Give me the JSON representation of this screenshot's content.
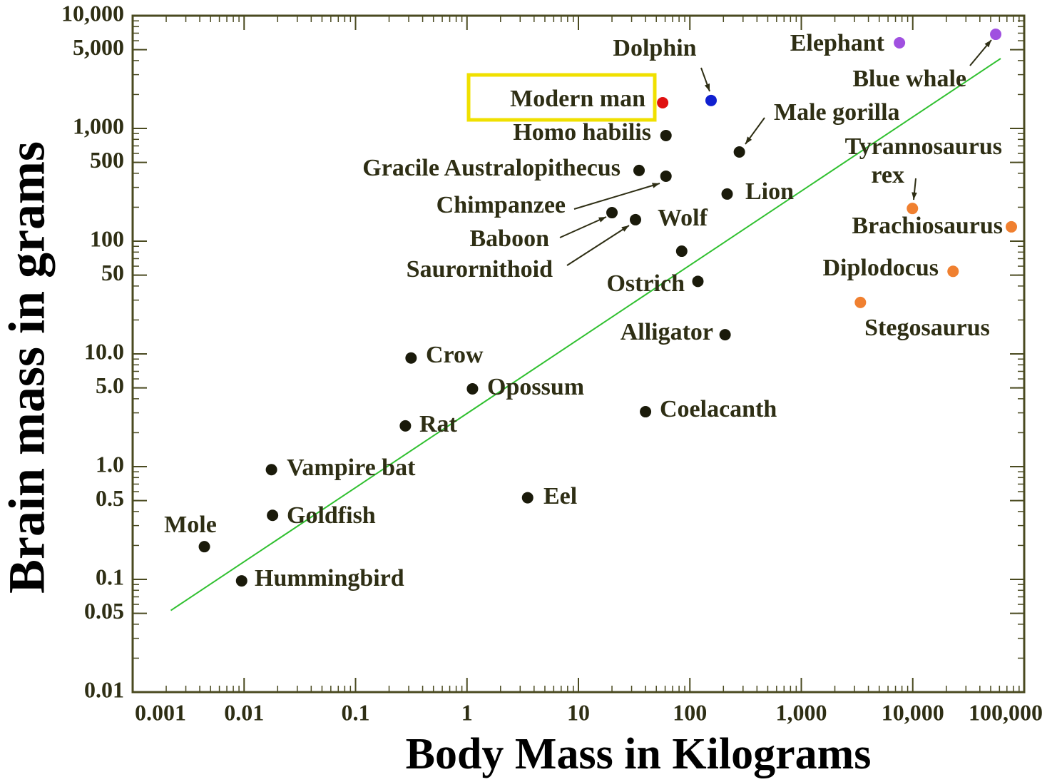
{
  "chart_data": {
    "type": "scatter",
    "x_label": "Body Mass in Kilograms",
    "y_label": "Brain mass in grams",
    "log_x": true,
    "log_y": true,
    "minor_ticks": true,
    "xlim": [
      0.001,
      100000
    ],
    "ylim": [
      0.01,
      10000
    ],
    "xticks": [
      0.001,
      0.01,
      0.1,
      1,
      10,
      100,
      {
        "value": 1000,
        "label": "1,000"
      },
      {
        "value": 10000,
        "label": "10,000"
      },
      {
        "value": 100000,
        "label": "100,000"
      }
    ],
    "yticks": [
      {
        "value": 10000,
        "label": "10,000"
      },
      {
        "value": 5000,
        "label": "5,000"
      },
      {
        "value": 1000,
        "label": "1,000"
      },
      500,
      100,
      50,
      {
        "value": 10,
        "label": "10.0"
      },
      {
        "value": 5,
        "label": "5.0"
      },
      {
        "value": 1,
        "label": "1.0"
      },
      0.5,
      0.1,
      0.05,
      0.01
    ],
    "labels": [
      "Modern man",
      "Dolphin",
      "Elephant",
      "Blue whale",
      "Homo habilis",
      "Gracile Australopithecus",
      "Chimpanzee",
      "Baboon",
      "Saurornithoid",
      "Wolf",
      "Male gorilla",
      "Lion",
      "Ostrich",
      "Alligator",
      "Tyrannosaurus rex",
      "Brachiosaurus",
      "Diplodocus",
      "Stegosaurus",
      "Crow",
      "Opossum",
      "Coelacanth",
      "Rat",
      "Vampire bat",
      "Eel",
      "Goldfish",
      "Mole",
      "Hummingbird"
    ],
    "x": [
      57,
      155,
      7600,
      55500,
      61,
      35,
      61,
      20,
      32.5,
      84.5,
      278,
      216,
      118,
      207,
      9930,
      76700,
      23000,
      3390,
      0.315,
      1.12,
      40,
      0.28,
      0.0176,
      3.5,
      0.018,
      0.0044,
      0.0095
    ],
    "y": [
      1690,
      1770,
      5750,
      6840,
      865,
      424,
      377,
      179,
      155,
      81.5,
      618,
      262,
      44,
      14.8,
      195,
      134,
      54,
      28.6,
      9.2,
      4.9,
      3.07,
      2.3,
      0.94,
      0.53,
      0.37,
      0.195,
      0.097
    ],
    "colors": [
      "#e01010",
      "#1020d0",
      "#a050e0",
      "#a050e0",
      "#1a1a0a",
      "#1a1a0a",
      "#1a1a0a",
      "#1a1a0a",
      "#1a1a0a",
      "#1a1a0a",
      "#1a1a0a",
      "#1a1a0a",
      "#1a1a0a",
      "#1a1a0a",
      "#f08030",
      "#f08030",
      "#f08030",
      "#f08030",
      "#1a1a0a",
      "#1a1a0a",
      "#1a1a0a",
      "#1a1a0a",
      "#1a1a0a",
      "#1a1a0a",
      "#1a1a0a",
      "#1a1a0a",
      "#1a1a0a"
    ],
    "highlight": 0,
    "highlight_color": "#f0e000",
    "trend": {
      "x": [
        0.0022,
        61500
      ],
      "y": [
        0.053,
        4170
      ],
      "color": "#30c030"
    }
  }
}
